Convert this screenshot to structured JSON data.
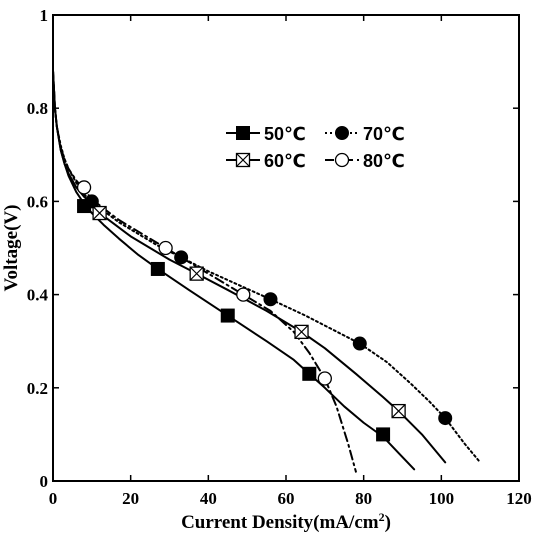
{
  "chart_data": {
    "type": "line",
    "title": "",
    "xlabel": "Current Density(mA/cm",
    "xlabel_sup": "2",
    "xlabel_close": ")",
    "ylabel": "Voltage(V)",
    "xlim": [
      0,
      120
    ],
    "ylim": [
      0,
      1
    ],
    "xticks": [
      0,
      20,
      40,
      60,
      80,
      100,
      120
    ],
    "xtick_labels": [
      "0",
      "20",
      "40",
      "60",
      "80",
      "100",
      "120"
    ],
    "yticks": [
      0,
      0.2,
      0.4,
      0.6,
      0.8,
      1
    ],
    "ytick_labels": [
      "0",
      "0.2",
      "0.4",
      "0.6",
      "0.8",
      "1"
    ],
    "grid": false,
    "legend_position": "top-right",
    "series": [
      {
        "name": "50℃",
        "marker": "filled-square",
        "line_style": "solid",
        "x": [
          0,
          0.5,
          1,
          2,
          3,
          4,
          6,
          8,
          10,
          13,
          17,
          22,
          27,
          35,
          45,
          55,
          62,
          66,
          70,
          75,
          80,
          85,
          89,
          93
        ],
        "y": [
          0.88,
          0.8,
          0.76,
          0.71,
          0.68,
          0.655,
          0.62,
          0.595,
          0.575,
          0.55,
          0.52,
          0.485,
          0.455,
          0.41,
          0.355,
          0.3,
          0.26,
          0.23,
          0.2,
          0.16,
          0.125,
          0.095,
          0.06,
          0.025
        ],
        "markers_x": [
          8,
          27,
          45,
          66,
          85
        ],
        "markers_y": [
          0.59,
          0.455,
          0.355,
          0.23,
          0.1
        ]
      },
      {
        "name": "60℃",
        "marker": "crossed-square",
        "line_style": "solid",
        "x": [
          0,
          0.5,
          1,
          2,
          3,
          4,
          6,
          8,
          10,
          12,
          16,
          20,
          25,
          30,
          37,
          45,
          55,
          64,
          70,
          78,
          85,
          89,
          95,
          101
        ],
        "y": [
          0.88,
          0.8,
          0.76,
          0.71,
          0.68,
          0.66,
          0.63,
          0.61,
          0.595,
          0.575,
          0.55,
          0.525,
          0.5,
          0.475,
          0.445,
          0.41,
          0.365,
          0.32,
          0.285,
          0.23,
          0.18,
          0.15,
          0.1,
          0.04
        ],
        "markers_x": [
          12,
          37,
          64,
          89
        ],
        "markers_y": [
          0.575,
          0.445,
          0.32,
          0.15
        ]
      },
      {
        "name": "70℃",
        "marker": "filled-circle",
        "line_style": "dotted",
        "x": [
          0,
          0.5,
          1,
          2,
          3,
          4,
          6,
          8,
          10,
          13,
          17,
          22,
          27,
          33,
          40,
          48,
          56,
          65,
          72,
          79,
          86,
          92,
          97,
          101,
          106,
          110
        ],
        "y": [
          0.88,
          0.8,
          0.76,
          0.72,
          0.69,
          0.67,
          0.64,
          0.615,
          0.6,
          0.58,
          0.555,
          0.53,
          0.505,
          0.48,
          0.45,
          0.42,
          0.39,
          0.355,
          0.325,
          0.295,
          0.255,
          0.21,
          0.17,
          0.135,
          0.08,
          0.04
        ],
        "markers_x": [
          10,
          33,
          56,
          79,
          101
        ],
        "markers_y": [
          0.6,
          0.48,
          0.39,
          0.295,
          0.135
        ]
      },
      {
        "name": "80℃",
        "marker": "open-circle",
        "line_style": "dash-dot",
        "x": [
          0,
          0.5,
          1,
          2,
          3,
          4,
          6,
          8,
          10,
          13,
          17,
          22,
          29,
          35,
          42,
          49,
          56,
          62,
          66,
          70,
          73,
          76,
          78
        ],
        "y": [
          0.88,
          0.8,
          0.76,
          0.715,
          0.69,
          0.67,
          0.645,
          0.625,
          0.605,
          0.585,
          0.56,
          0.535,
          0.5,
          0.47,
          0.435,
          0.4,
          0.365,
          0.32,
          0.275,
          0.22,
          0.16,
          0.08,
          0.02
        ],
        "markers_x": [
          8,
          29,
          49,
          70
        ],
        "markers_y": [
          0.63,
          0.5,
          0.4,
          0.22
        ]
      }
    ]
  }
}
